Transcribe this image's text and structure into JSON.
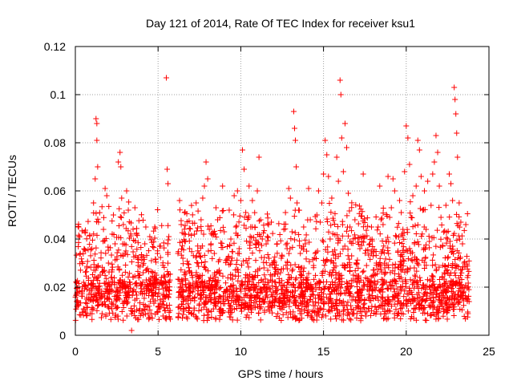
{
  "chart_data": {
    "type": "scatter",
    "title": "Day 121 of 2014, Rate Of TEC Index for receiver ksu1",
    "xlabel": "GPS time / hours",
    "ylabel": "ROTI / TECUs",
    "xlim": [
      0,
      25
    ],
    "ylim": [
      0,
      0.12
    ],
    "x_ticks": [
      0,
      5,
      10,
      15,
      20,
      25
    ],
    "x_tick_labels": [
      "0",
      "5",
      "10",
      "15",
      "20",
      "25"
    ],
    "y_ticks": [
      0,
      0.02,
      0.04,
      0.06,
      0.08,
      0.1,
      0.12
    ],
    "y_tick_labels": [
      "0",
      "0.02",
      "0.04",
      "0.06",
      "0.08",
      "0.1",
      "0.12"
    ],
    "grid": true,
    "marker": "plus",
    "color": "#ff0000",
    "series": [
      {
        "name": "ROTI",
        "points": [
          [
            0.1,
            0.012
          ],
          [
            0.2,
            0.045
          ],
          [
            0.25,
            0.041
          ],
          [
            0.3,
            0.034
          ],
          [
            0.4,
            0.018
          ],
          [
            0.5,
            0.022
          ],
          [
            0.6,
            0.01
          ],
          [
            0.7,
            0.028
          ],
          [
            0.8,
            0.015
          ],
          [
            0.9,
            0.009
          ],
          [
            1.0,
            0.036
          ],
          [
            1.1,
            0.055
          ],
          [
            1.2,
            0.065
          ],
          [
            1.25,
            0.09
          ],
          [
            1.3,
            0.088
          ],
          [
            1.3,
            0.081
          ],
          [
            1.35,
            0.07
          ],
          [
            1.4,
            0.047
          ],
          [
            1.5,
            0.025
          ],
          [
            1.6,
            0.013
          ],
          [
            1.7,
            0.044
          ],
          [
            1.8,
            0.061
          ],
          [
            1.9,
            0.058
          ],
          [
            2.0,
            0.03
          ],
          [
            2.1,
            0.019
          ],
          [
            2.2,
            0.011
          ],
          [
            2.3,
            0.05
          ],
          [
            2.4,
            0.038
          ],
          [
            2.5,
            0.016
          ],
          [
            2.6,
            0.072
          ],
          [
            2.7,
            0.076
          ],
          [
            2.75,
            0.07
          ],
          [
            2.8,
            0.057
          ],
          [
            2.9,
            0.046
          ],
          [
            3.0,
            0.034
          ],
          [
            3.1,
            0.06
          ],
          [
            3.2,
            0.052
          ],
          [
            3.3,
            0.022
          ],
          [
            3.4,
            0.002
          ],
          [
            3.5,
            0.018
          ],
          [
            3.6,
            0.053
          ],
          [
            3.7,
            0.042
          ],
          [
            3.8,
            0.029
          ],
          [
            3.9,
            0.011
          ],
          [
            4.0,
            0.033
          ],
          [
            4.1,
            0.026
          ],
          [
            4.2,
            0.038
          ],
          [
            4.3,
            0.02
          ],
          [
            4.4,
            0.009
          ],
          [
            4.5,
            0.041
          ],
          [
            4.6,
            0.031
          ],
          [
            4.7,
            0.015
          ],
          [
            4.8,
            0.045
          ],
          [
            4.9,
            0.025
          ],
          [
            5.0,
            0.012
          ],
          [
            5.1,
            0.037
          ],
          [
            5.2,
            0.024
          ],
          [
            5.3,
            0.008
          ],
          [
            5.4,
            0.016
          ],
          [
            5.5,
            0.107
          ],
          [
            5.55,
            0.069
          ],
          [
            5.6,
            0.063
          ],
          [
            5.65,
            0.041
          ],
          [
            6.3,
            0.056
          ],
          [
            6.4,
            0.046
          ],
          [
            6.5,
            0.032
          ],
          [
            6.6,
            0.051
          ],
          [
            6.7,
            0.02
          ],
          [
            6.8,
            0.015
          ],
          [
            6.9,
            0.036
          ],
          [
            7.0,
            0.026
          ],
          [
            7.1,
            0.018
          ],
          [
            7.2,
            0.042
          ],
          [
            7.3,
            0.055
          ],
          [
            7.4,
            0.03
          ],
          [
            7.5,
            0.013
          ],
          [
            7.6,
            0.048
          ],
          [
            7.7,
            0.057
          ],
          [
            7.8,
            0.062
          ],
          [
            7.9,
            0.072
          ],
          [
            8.0,
            0.065
          ],
          [
            8.1,
            0.044
          ],
          [
            8.2,
            0.038
          ],
          [
            8.3,
            0.02
          ],
          [
            8.4,
            0.034
          ],
          [
            8.5,
            0.053
          ],
          [
            8.6,
            0.048
          ],
          [
            8.7,
            0.027
          ],
          [
            8.8,
            0.011
          ],
          [
            8.9,
            0.062
          ],
          [
            9.0,
            0.043
          ],
          [
            9.1,
            0.031
          ],
          [
            9.2,
            0.019
          ],
          [
            9.3,
            0.052
          ],
          [
            9.4,
            0.04
          ],
          [
            9.5,
            0.025
          ],
          [
            9.6,
            0.058
          ],
          [
            9.7,
            0.045
          ],
          [
            9.8,
            0.06
          ],
          [
            9.9,
            0.036
          ],
          [
            10.0,
            0.056
          ],
          [
            10.1,
            0.077
          ],
          [
            10.2,
            0.069
          ],
          [
            10.3,
            0.051
          ],
          [
            10.4,
            0.03
          ],
          [
            10.5,
            0.062
          ],
          [
            10.6,
            0.045
          ],
          [
            10.7,
            0.056
          ],
          [
            10.8,
            0.024
          ],
          [
            10.9,
            0.038
          ],
          [
            11.0,
            0.06
          ],
          [
            11.1,
            0.074
          ],
          [
            11.2,
            0.048
          ],
          [
            11.3,
            0.04
          ],
          [
            11.4,
            0.028
          ],
          [
            11.5,
            0.018
          ],
          [
            11.6,
            0.041
          ],
          [
            11.7,
            0.032
          ],
          [
            11.8,
            0.023
          ],
          [
            11.9,
            0.012
          ],
          [
            12.0,
            0.031
          ],
          [
            12.1,
            0.022
          ],
          [
            12.2,
            0.038
          ],
          [
            12.3,
            0.014
          ],
          [
            12.4,
            0.026
          ],
          [
            12.5,
            0.019
          ],
          [
            12.6,
            0.044
          ],
          [
            12.7,
            0.051
          ],
          [
            12.8,
            0.036
          ],
          [
            12.9,
            0.061
          ],
          [
            13.0,
            0.057
          ],
          [
            13.1,
            0.043
          ],
          [
            13.2,
            0.093
          ],
          [
            13.25,
            0.086
          ],
          [
            13.3,
            0.081
          ],
          [
            13.35,
            0.07
          ],
          [
            13.4,
            0.055
          ],
          [
            13.5,
            0.052
          ],
          [
            13.6,
            0.034
          ],
          [
            13.7,
            0.028
          ],
          [
            13.8,
            0.045
          ],
          [
            13.9,
            0.038
          ],
          [
            14.0,
            0.024
          ],
          [
            14.1,
            0.061
          ],
          [
            14.2,
            0.048
          ],
          [
            14.3,
            0.017
          ],
          [
            14.4,
            0.029
          ],
          [
            14.5,
            0.034
          ],
          [
            14.6,
            0.05
          ],
          [
            14.7,
            0.06
          ],
          [
            14.8,
            0.047
          ],
          [
            14.9,
            0.055
          ],
          [
            15.0,
            0.067
          ],
          [
            15.1,
            0.081
          ],
          [
            15.2,
            0.075
          ],
          [
            15.3,
            0.066
          ],
          [
            15.4,
            0.04
          ],
          [
            15.5,
            0.057
          ],
          [
            15.6,
            0.03
          ],
          [
            15.7,
            0.021
          ],
          [
            15.8,
            0.074
          ],
          [
            15.9,
            0.064
          ],
          [
            16.0,
            0.106
          ],
          [
            16.05,
            0.1
          ],
          [
            16.1,
            0.082
          ],
          [
            16.2,
            0.068
          ],
          [
            16.3,
            0.088
          ],
          [
            16.4,
            0.078
          ],
          [
            16.5,
            0.059
          ],
          [
            16.6,
            0.045
          ],
          [
            16.7,
            0.033
          ],
          [
            16.8,
            0.025
          ],
          [
            16.9,
            0.048
          ],
          [
            17.0,
            0.022
          ],
          [
            17.1,
            0.011
          ],
          [
            17.2,
            0.036
          ],
          [
            17.4,
            0.067
          ],
          [
            17.5,
            0.041
          ],
          [
            17.6,
            0.029
          ],
          [
            17.8,
            0.038
          ],
          [
            17.9,
            0.045
          ],
          [
            18.0,
            0.033
          ],
          [
            18.1,
            0.021
          ],
          [
            18.2,
            0.03
          ],
          [
            18.3,
            0.045
          ],
          [
            18.4,
            0.062
          ],
          [
            18.5,
            0.034
          ],
          [
            18.6,
            0.046
          ],
          [
            18.7,
            0.028
          ],
          [
            18.8,
            0.039
          ],
          [
            18.9,
            0.066
          ],
          [
            19.0,
            0.049
          ],
          [
            19.1,
            0.053
          ],
          [
            19.2,
            0.065
          ],
          [
            19.3,
            0.06
          ],
          [
            19.4,
            0.041
          ],
          [
            19.5,
            0.035
          ],
          [
            19.6,
            0.056
          ],
          [
            19.7,
            0.051
          ],
          [
            19.8,
            0.044
          ],
          [
            19.9,
            0.068
          ],
          [
            20.0,
            0.087
          ],
          [
            20.1,
            0.082
          ],
          [
            20.2,
            0.071
          ],
          [
            20.3,
            0.049
          ],
          [
            20.4,
            0.058
          ],
          [
            20.5,
            0.038
          ],
          [
            20.6,
            0.062
          ],
          [
            20.7,
            0.081
          ],
          [
            20.8,
            0.077
          ],
          [
            20.9,
            0.066
          ],
          [
            21.0,
            0.052
          ],
          [
            21.1,
            0.06
          ],
          [
            21.2,
            0.044
          ],
          [
            21.3,
            0.064
          ],
          [
            21.4,
            0.039
          ],
          [
            21.5,
            0.054
          ],
          [
            21.6,
            0.067
          ],
          [
            21.7,
            0.072
          ],
          [
            21.8,
            0.083
          ],
          [
            21.9,
            0.076
          ],
          [
            22.0,
            0.062
          ],
          [
            22.1,
            0.049
          ],
          [
            22.2,
            0.037
          ],
          [
            22.3,
            0.026
          ],
          [
            22.4,
            0.054
          ],
          [
            22.5,
            0.04
          ],
          [
            22.6,
            0.067
          ],
          [
            22.7,
            0.063
          ],
          [
            22.8,
            0.056
          ],
          [
            22.9,
            0.103
          ],
          [
            22.95,
            0.098
          ],
          [
            23.0,
            0.092
          ],
          [
            23.05,
            0.084
          ],
          [
            23.1,
            0.074
          ],
          [
            23.2,
            0.055
          ],
          [
            23.3,
            0.047
          ],
          [
            23.4,
            0.038
          ],
          [
            23.5,
            0.03
          ],
          [
            23.6,
            0.046
          ],
          [
            23.7,
            0.024
          ],
          [
            23.8,
            0.014
          ]
        ]
      }
    ]
  }
}
